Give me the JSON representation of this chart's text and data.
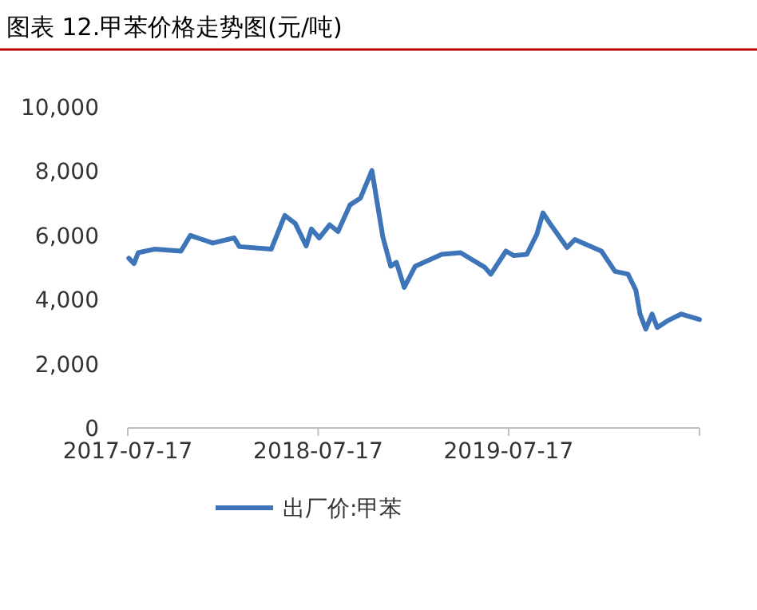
{
  "chart_data": {
    "type": "line",
    "title": "图表 12.甲苯价格走势图(元/吨)",
    "x": [
      "2017-07-19",
      "2017-07-29",
      "2017-08-06",
      "2017-09-06",
      "2017-10-27",
      "2017-11-14",
      "2017-12-27",
      "2018-02-06",
      "2018-02-16",
      "2018-04-18",
      "2018-05-14",
      "2018-06-03",
      "2018-06-24",
      "2018-07-04",
      "2018-07-19",
      "2018-08-08",
      "2018-08-24",
      "2018-09-16",
      "2018-10-06",
      "2018-10-28",
      "2018-11-18",
      "2018-12-03",
      "2018-12-14",
      "2018-12-29",
      "2019-01-19",
      "2019-03-11",
      "2019-04-16",
      "2019-06-01",
      "2019-06-13",
      "2019-07-12",
      "2019-07-27",
      "2019-08-21",
      "2019-09-09",
      "2019-09-21",
      "2019-10-06",
      "2019-11-06",
      "2019-11-21",
      "2020-01-11",
      "2020-02-06",
      "2020-03-02",
      "2020-03-17",
      "2020-03-25",
      "2020-04-05",
      "2020-04-17",
      "2020-04-27",
      "2020-05-18",
      "2020-06-12",
      "2020-07-17"
    ],
    "series": [
      {
        "name": "出厂价:甲苯",
        "color": "#3e75b9",
        "values": [
          5290,
          5120,
          5460,
          5570,
          5510,
          6000,
          5760,
          5920,
          5650,
          5570,
          6620,
          6370,
          5670,
          6200,
          5920,
          6330,
          6120,
          6950,
          7160,
          8020,
          5950,
          5040,
          5160,
          4380,
          5040,
          5410,
          5460,
          5010,
          4790,
          5510,
          5370,
          5410,
          6030,
          6700,
          6330,
          5620,
          5870,
          5510,
          4880,
          4790,
          4290,
          3550,
          3080,
          3550,
          3130,
          3350,
          3550,
          3380
        ]
      }
    ],
    "xlim": [
      "2017-07-17",
      "2020-07-17"
    ],
    "xticks": [
      "2017-07-17",
      "2018-07-17",
      "2019-07-17",
      {
        "value": "2020-07-17",
        "label": null
      }
    ],
    "ylim": [
      0,
      10000
    ],
    "yticks": [
      {
        "value": 0,
        "label": "0"
      },
      {
        "value": 2000,
        "label": "2,000"
      },
      {
        "value": 4000,
        "label": "4,000"
      },
      {
        "value": 6000,
        "label": "6,000"
      },
      {
        "value": 8000,
        "label": "8,000"
      },
      {
        "value": 10000,
        "label": "10,000"
      }
    ],
    "legend": "bottom",
    "grid": false,
    "marker": "none",
    "line_style": "solid"
  }
}
